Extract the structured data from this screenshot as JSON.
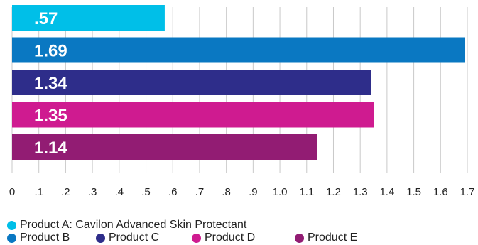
{
  "chart_data": {
    "type": "bar",
    "orientation": "horizontal",
    "categories": [
      "Product A: Cavilon Advanced Skin Protectant",
      "Product B",
      "Product C",
      "Product D",
      "Product E"
    ],
    "values": [
      0.57,
      1.69,
      1.34,
      1.35,
      1.14
    ],
    "value_labels": [
      ".57",
      "1.69",
      "1.34",
      "1.35",
      "1.14"
    ],
    "colors": [
      "#00bfe8",
      "#0a78c2",
      "#2e2d8a",
      "#cf1b90",
      "#921c73"
    ],
    "xlim": [
      0,
      1.7
    ],
    "x_ticks": [
      "0",
      ".1",
      ".2",
      ".3",
      ".4",
      ".5",
      ".6",
      ".7",
      ".8",
      ".9",
      "1.0",
      "1.1",
      "1.2",
      "1.3",
      "1.4",
      "1.5",
      "1.6",
      "1.7"
    ],
    "grid": true,
    "legend_position": "bottom",
    "title": "",
    "xlabel": "",
    "ylabel": ""
  },
  "legend": {
    "row1": [
      {
        "label": "Product A: Cavilon Advanced Skin Protectant",
        "color": "#00bfe8"
      }
    ],
    "row2": [
      {
        "label": "Product B",
        "color": "#0a78c2"
      },
      {
        "label": "Product C",
        "color": "#2e2d8a"
      },
      {
        "label": "Product D",
        "color": "#cf1b90"
      },
      {
        "label": "Product E",
        "color": "#921c73"
      }
    ]
  }
}
